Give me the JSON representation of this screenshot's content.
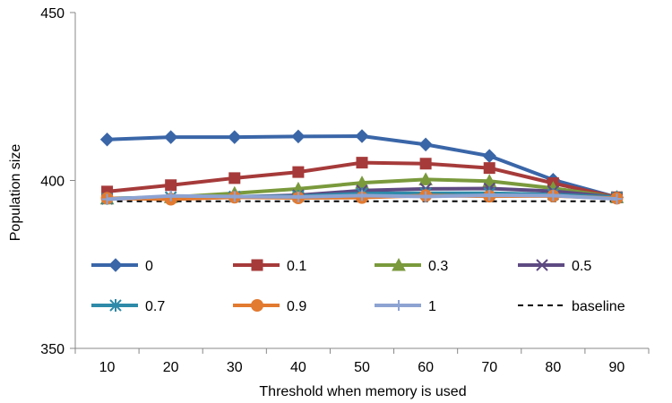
{
  "chart_data": {
    "type": "line",
    "title": "",
    "xlabel": "Threshold when memory is used",
    "ylabel": "Population size",
    "categories": [
      "10",
      "20",
      "30",
      "40",
      "50",
      "60",
      "70",
      "80",
      "90"
    ],
    "x": [
      10,
      20,
      30,
      40,
      50,
      60,
      70,
      80,
      90
    ],
    "ylim": [
      350,
      450
    ],
    "yticks": [
      350,
      400,
      450
    ],
    "grid": false,
    "legend_position": "inside-bottom",
    "series": [
      {
        "name": "0",
        "color": "#3A66A8",
        "marker": "diamond",
        "values": [
          412.2,
          412.9,
          412.9,
          413.1,
          413.2,
          410.7,
          407.3,
          400.2,
          395.0
        ]
      },
      {
        "name": "0.1",
        "color": "#A63A3A",
        "marker": "square",
        "values": [
          396.7,
          398.6,
          400.7,
          402.5,
          405.3,
          405.0,
          403.7,
          399.2,
          395.0
        ]
      },
      {
        "name": "0.3",
        "color": "#7A9A3C",
        "marker": "triangle",
        "values": [
          394.6,
          395.0,
          396.2,
          397.5,
          399.3,
          400.3,
          399.8,
          397.7,
          395.0
        ]
      },
      {
        "name": "0.5",
        "color": "#5E4A82",
        "marker": "x",
        "values": [
          394.5,
          395.0,
          395.1,
          395.6,
          397.0,
          397.5,
          397.6,
          396.8,
          395.0
        ]
      },
      {
        "name": "0.7",
        "color": "#2E8AA8",
        "marker": "star",
        "values": [
          394.6,
          395.0,
          395.2,
          395.3,
          396.1,
          396.2,
          396.2,
          395.8,
          395.0
        ]
      },
      {
        "name": "0.9",
        "color": "#E27A30",
        "marker": "circle",
        "values": [
          394.7,
          394.4,
          395.0,
          394.8,
          394.9,
          395.5,
          395.3,
          395.4,
          394.7
        ]
      },
      {
        "name": "1",
        "color": "#8DA3D2",
        "marker": "plus",
        "values": [
          394.4,
          395.4,
          395.2,
          395.1,
          395.5,
          395.2,
          395.6,
          395.5,
          394.5
        ]
      },
      {
        "name": "baseline",
        "color": "#000000",
        "marker": "none",
        "dash": "6,5",
        "values": [
          393.8,
          393.8,
          393.8,
          393.8,
          393.8,
          393.8,
          393.8,
          393.8,
          393.8
        ]
      }
    ]
  }
}
